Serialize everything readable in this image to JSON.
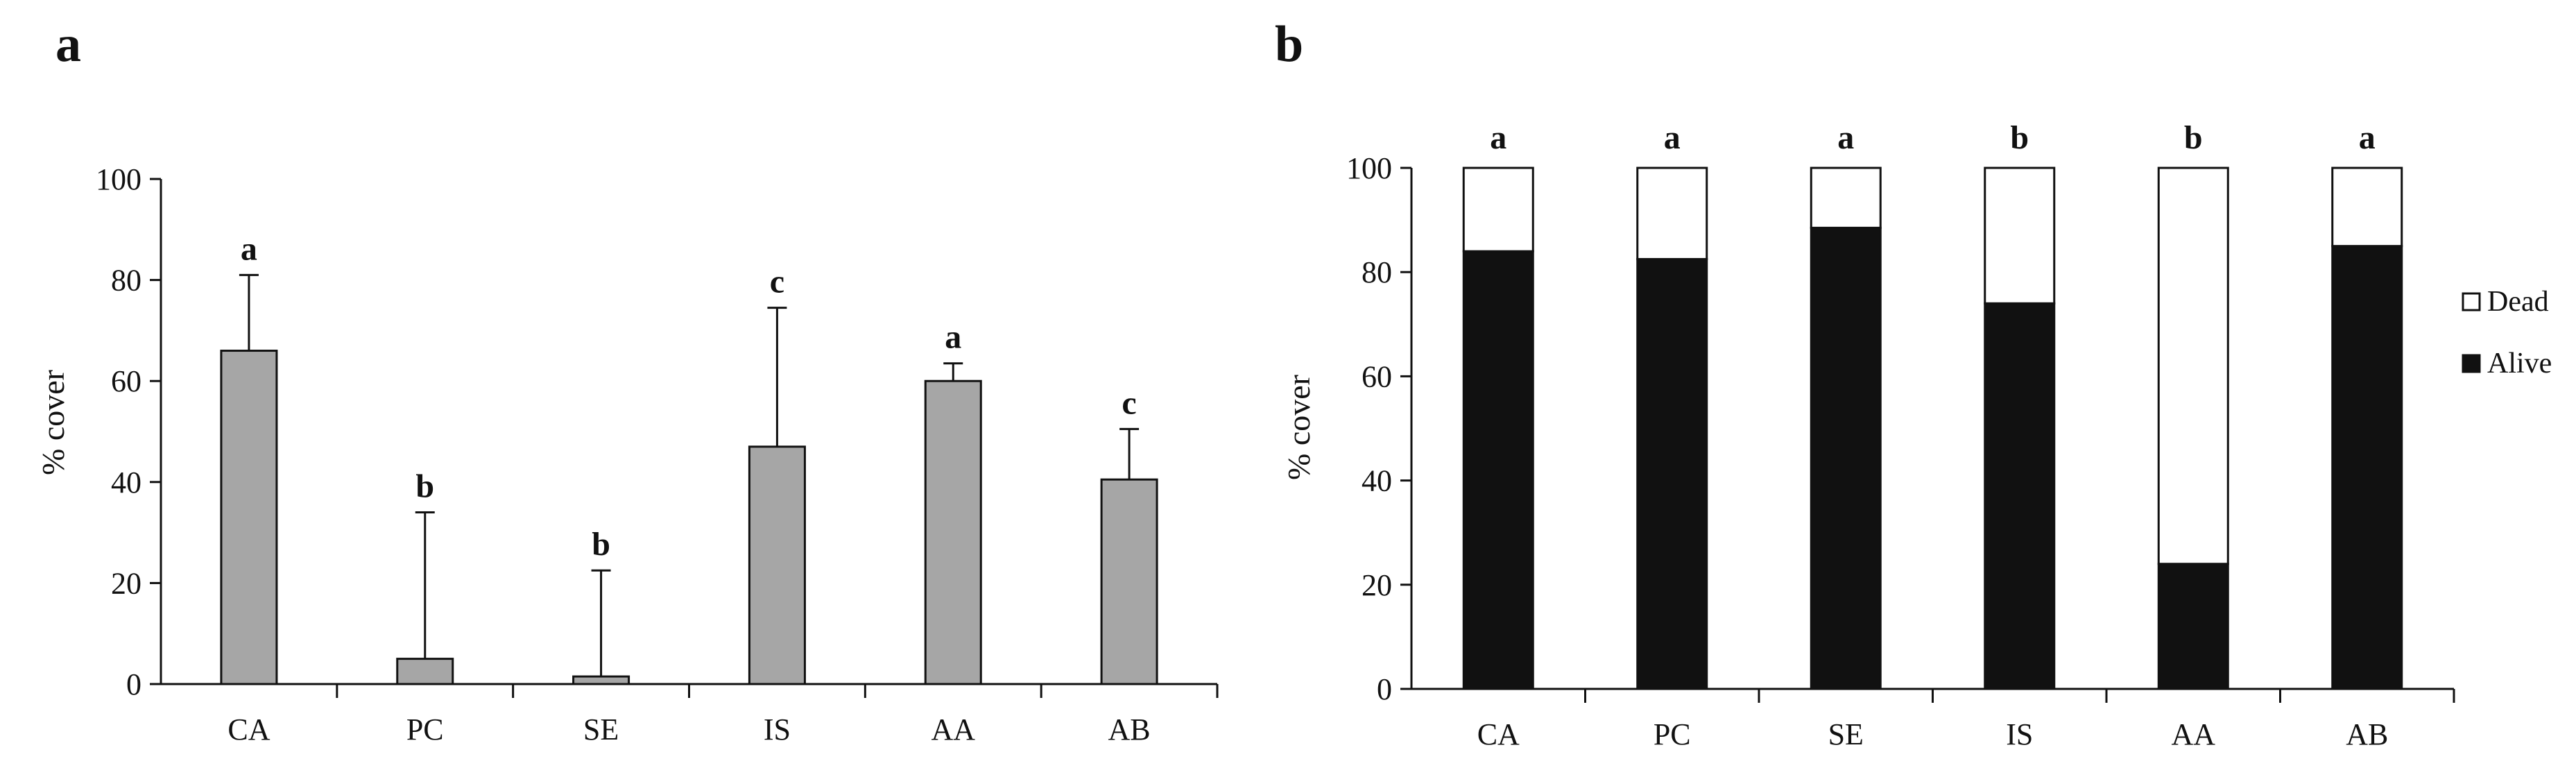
{
  "chart_data": [
    {
      "panel_label": "a",
      "type": "bar",
      "categories": [
        "CA",
        "PC",
        "SE",
        "IS",
        "AA",
        "AB"
      ],
      "values": [
        66,
        5,
        1.5,
        47,
        60,
        40.5
      ],
      "errors": [
        15,
        29,
        21,
        27.5,
        3.5,
        10
      ],
      "significance": [
        "a",
        "b",
        "b",
        "c",
        "a",
        "c"
      ],
      "ylabel": "% cover",
      "xlabel": "",
      "ylim": [
        0,
        100
      ],
      "yticks": [
        "0",
        "20",
        "40",
        "60",
        "80",
        "100"
      ],
      "bar_color": "#a6a6a6",
      "grid": false
    },
    {
      "panel_label": "b",
      "type": "bar",
      "stacked": true,
      "categories": [
        "CA",
        "PC",
        "SE",
        "IS",
        "AA",
        "AB"
      ],
      "series": [
        {
          "name": "Alive",
          "values": [
            84,
            82.5,
            88.5,
            74,
            24,
            85
          ],
          "color": "#111111"
        },
        {
          "name": "Dead",
          "values": [
            16,
            17.5,
            11.5,
            26,
            76,
            15
          ],
          "color": "#ffffff"
        }
      ],
      "significance": [
        "a",
        "a",
        "a",
        "b",
        "b",
        "a"
      ],
      "legend": [
        "Dead",
        "Alive"
      ],
      "legend_position": "right",
      "ylabel": "% cover",
      "xlabel": "",
      "ylim": [
        0,
        100
      ],
      "yticks": [
        "0",
        "20",
        "40",
        "60",
        "80",
        "100"
      ],
      "grid": false
    }
  ]
}
